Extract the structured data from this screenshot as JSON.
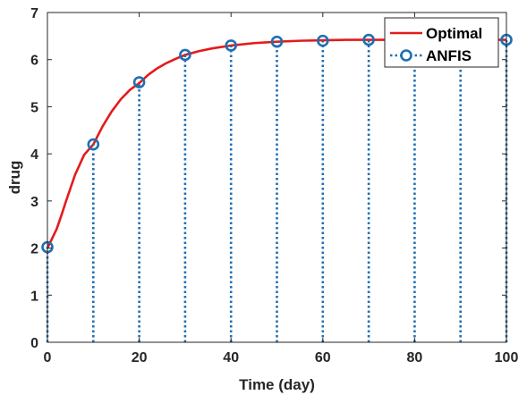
{
  "chart_data": {
    "type": "line",
    "title": "",
    "xlabel": "Time (day)",
    "ylabel": "drug",
    "xlim": [
      0,
      100
    ],
    "ylim": [
      0,
      7
    ],
    "xticks": [
      0,
      20,
      40,
      60,
      80,
      100
    ],
    "yticks": [
      0,
      1,
      2,
      3,
      4,
      5,
      6,
      7
    ],
    "grid": false,
    "legend_position": "top-right",
    "series": [
      {
        "name": "Optimal",
        "style": "solid-line",
        "color": "#e41a1c",
        "x": [
          0,
          1,
          2,
          3,
          4,
          6,
          8,
          10,
          12,
          14,
          16,
          18,
          20,
          22,
          24,
          26,
          28,
          30,
          33,
          36,
          40,
          45,
          50,
          55,
          60,
          65,
          70,
          75,
          80,
          85,
          90,
          95,
          100
        ],
        "y": [
          2.0,
          2.2,
          2.4,
          2.68,
          2.98,
          3.55,
          3.98,
          4.2,
          4.58,
          4.9,
          5.16,
          5.36,
          5.5,
          5.68,
          5.82,
          5.93,
          6.02,
          6.1,
          6.18,
          6.24,
          6.3,
          6.35,
          6.38,
          6.4,
          6.41,
          6.42,
          6.42,
          6.42,
          6.42,
          6.42,
          6.42,
          6.42,
          6.42
        ]
      },
      {
        "name": "ANFIS",
        "style": "dotted-stem-circle",
        "color": "#1f6fb2",
        "x": [
          0,
          10,
          20,
          30,
          40,
          50,
          60,
          70,
          80,
          90,
          100
        ],
        "y": [
          2.02,
          4.2,
          5.52,
          6.1,
          6.3,
          6.38,
          6.4,
          6.42,
          6.42,
          6.42,
          6.42
        ],
        "markers_shown": [
          true,
          true,
          true,
          true,
          true,
          true,
          true,
          true,
          false,
          false,
          true
        ]
      }
    ]
  }
}
